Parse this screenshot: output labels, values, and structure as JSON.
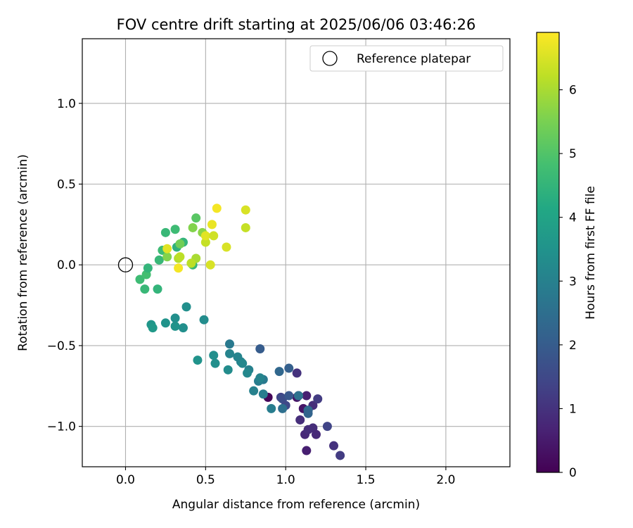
{
  "chart_data": {
    "type": "scatter",
    "title": "FOV centre drift starting at 2025/06/06 03:46:26",
    "xlabel": "Angular distance from reference (arcmin)",
    "ylabel": "Rotation from reference (arcmin)",
    "xlim": [
      -0.27,
      2.4
    ],
    "ylim": [
      -1.25,
      1.4
    ],
    "x_ticks": [
      0.0,
      0.5,
      1.0,
      1.5,
      2.0
    ],
    "x_tick_labels": [
      "0.0",
      "0.5",
      "1.0",
      "1.5",
      "2.0"
    ],
    "y_ticks": [
      -1.0,
      -0.5,
      0.0,
      0.5,
      1.0
    ],
    "y_tick_labels": [
      "−1.0",
      "−0.5",
      "0.0",
      "0.5",
      "1.0"
    ],
    "grid": true,
    "legend": {
      "position": "upper-right",
      "entries": [
        {
          "label": "Reference platepar",
          "marker": "open-circle",
          "x": 0.0,
          "y": 0.0
        }
      ]
    },
    "colorbar": {
      "label": "Hours from first FF file",
      "colormap": "viridis",
      "range": [
        0,
        6.9
      ],
      "ticks": [
        0,
        1,
        2,
        3,
        4,
        5,
        6
      ],
      "tick_labels": [
        "0",
        "1",
        "2",
        "3",
        "4",
        "5",
        "6"
      ]
    },
    "points": [
      {
        "x": 1.34,
        "y": -1.18,
        "c": 1.2
      },
      {
        "x": 1.3,
        "y": -1.12,
        "c": 1.0
      },
      {
        "x": 1.26,
        "y": -1.0,
        "c": 1.4
      },
      {
        "x": 1.13,
        "y": -1.15,
        "c": 0.6
      },
      {
        "x": 1.12,
        "y": -1.05,
        "c": 0.8
      },
      {
        "x": 1.14,
        "y": -1.02,
        "c": 0.9
      },
      {
        "x": 1.17,
        "y": -1.01,
        "c": 0.9
      },
      {
        "x": 1.19,
        "y": -1.05,
        "c": 0.8
      },
      {
        "x": 1.09,
        "y": -0.96,
        "c": 0.9
      },
      {
        "x": 1.11,
        "y": -0.89,
        "c": 0.4
      },
      {
        "x": 1.14,
        "y": -0.9,
        "c": 0.7
      },
      {
        "x": 1.17,
        "y": -0.87,
        "c": 0.9
      },
      {
        "x": 1.2,
        "y": -0.83,
        "c": 1.2
      },
      {
        "x": 1.13,
        "y": -0.81,
        "c": 0.6
      },
      {
        "x": 1.07,
        "y": -0.82,
        "c": 0.4
      },
      {
        "x": 1.08,
        "y": -0.81,
        "c": 0.8
      },
      {
        "x": 1.07,
        "y": -0.67,
        "c": 1.0
      },
      {
        "x": 0.89,
        "y": -0.82,
        "c": 0.1
      },
      {
        "x": 0.97,
        "y": -0.82,
        "c": 1.4
      },
      {
        "x": 0.98,
        "y": -0.83,
        "c": 1.6
      },
      {
        "x": 1.0,
        "y": -0.87,
        "c": 1.5
      },
      {
        "x": 1.02,
        "y": -0.81,
        "c": 1.9
      },
      {
        "x": 1.14,
        "y": -0.9,
        "c": 2.4
      },
      {
        "x": 1.14,
        "y": -0.92,
        "c": 2.2
      },
      {
        "x": 0.98,
        "y": -0.89,
        "c": 2.5
      },
      {
        "x": 1.08,
        "y": -0.81,
        "c": 2.6
      },
      {
        "x": 0.96,
        "y": -0.66,
        "c": 2.3
      },
      {
        "x": 1.02,
        "y": -0.64,
        "c": 2.1
      },
      {
        "x": 0.84,
        "y": -0.52,
        "c": 2.0
      },
      {
        "x": 0.91,
        "y": -0.89,
        "c": 2.9
      },
      {
        "x": 0.86,
        "y": -0.8,
        "c": 2.9
      },
      {
        "x": 0.8,
        "y": -0.78,
        "c": 3.0
      },
      {
        "x": 0.86,
        "y": -0.71,
        "c": 2.8
      },
      {
        "x": 0.83,
        "y": -0.72,
        "c": 2.9
      },
      {
        "x": 0.84,
        "y": -0.7,
        "c": 3.1
      },
      {
        "x": 0.77,
        "y": -0.65,
        "c": 3.0
      },
      {
        "x": 0.76,
        "y": -0.67,
        "c": 3.2
      },
      {
        "x": 0.72,
        "y": -0.6,
        "c": 3.0
      },
      {
        "x": 0.7,
        "y": -0.57,
        "c": 3.1
      },
      {
        "x": 0.73,
        "y": -0.61,
        "c": 3.2
      },
      {
        "x": 0.65,
        "y": -0.55,
        "c": 3.1
      },
      {
        "x": 0.65,
        "y": -0.49,
        "c": 2.8
      },
      {
        "x": 0.64,
        "y": -0.65,
        "c": 3.3
      },
      {
        "x": 0.56,
        "y": -0.61,
        "c": 3.4
      },
      {
        "x": 0.55,
        "y": -0.56,
        "c": 3.4
      },
      {
        "x": 0.45,
        "y": -0.59,
        "c": 3.5
      },
      {
        "x": 0.49,
        "y": -0.34,
        "c": 3.3
      },
      {
        "x": 0.38,
        "y": -0.26,
        "c": 3.4
      },
      {
        "x": 0.36,
        "y": -0.39,
        "c": 3.4
      },
      {
        "x": 0.31,
        "y": -0.38,
        "c": 3.5
      },
      {
        "x": 0.31,
        "y": -0.33,
        "c": 3.4
      },
      {
        "x": 0.25,
        "y": -0.36,
        "c": 3.5
      },
      {
        "x": 0.16,
        "y": -0.37,
        "c": 3.6
      },
      {
        "x": 0.17,
        "y": -0.39,
        "c": 3.7
      },
      {
        "x": 0.2,
        "y": -0.15,
        "c": 4.5
      },
      {
        "x": 0.12,
        "y": -0.15,
        "c": 4.6
      },
      {
        "x": 0.09,
        "y": -0.09,
        "c": 4.7
      },
      {
        "x": 0.13,
        "y": -0.06,
        "c": 4.8
      },
      {
        "x": 0.14,
        "y": -0.02,
        "c": 4.5
      },
      {
        "x": 0.21,
        "y": 0.03,
        "c": 4.6
      },
      {
        "x": 0.23,
        "y": 0.09,
        "c": 4.7
      },
      {
        "x": 0.25,
        "y": 0.2,
        "c": 4.6
      },
      {
        "x": 0.31,
        "y": 0.22,
        "c": 4.7
      },
      {
        "x": 0.32,
        "y": 0.11,
        "c": 4.4
      },
      {
        "x": 0.36,
        "y": 0.14,
        "c": 4.5
      },
      {
        "x": 0.34,
        "y": 0.13,
        "c": 5.4
      },
      {
        "x": 0.26,
        "y": 0.05,
        "c": 5.6
      },
      {
        "x": 0.42,
        "y": 0.0,
        "c": 4.6
      },
      {
        "x": 0.44,
        "y": 0.29,
        "c": 5.1
      },
      {
        "x": 0.42,
        "y": 0.23,
        "c": 5.6
      },
      {
        "x": 0.48,
        "y": 0.2,
        "c": 5.7
      },
      {
        "x": 0.44,
        "y": 0.04,
        "c": 6.0
      },
      {
        "x": 0.41,
        "y": 0.01,
        "c": 6.2
      },
      {
        "x": 0.33,
        "y": 0.04,
        "c": 6.1
      },
      {
        "x": 0.34,
        "y": 0.05,
        "c": 6.2
      },
      {
        "x": 0.33,
        "y": -0.02,
        "c": 6.8
      },
      {
        "x": 0.26,
        "y": 0.1,
        "c": 6.6
      },
      {
        "x": 0.5,
        "y": 0.14,
        "c": 6.3
      },
      {
        "x": 0.5,
        "y": 0.18,
        "c": 6.6
      },
      {
        "x": 0.54,
        "y": 0.25,
        "c": 6.7
      },
      {
        "x": 0.55,
        "y": 0.18,
        "c": 6.4
      },
      {
        "x": 0.53,
        "y": 0.0,
        "c": 6.5
      },
      {
        "x": 0.57,
        "y": 0.35,
        "c": 6.8
      },
      {
        "x": 0.63,
        "y": 0.11,
        "c": 6.5
      },
      {
        "x": 0.75,
        "y": 0.34,
        "c": 6.5
      },
      {
        "x": 0.75,
        "y": 0.23,
        "c": 6.3
      }
    ]
  }
}
